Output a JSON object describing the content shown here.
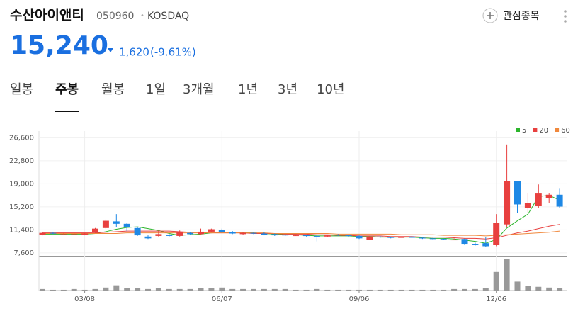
{
  "header": {
    "name": "수산아이앤티",
    "code": "050960",
    "separator": "•",
    "market": "KOSDAQ",
    "watch": "관심종목",
    "price": "15,240",
    "change": "1,620",
    "change_pct": "(-9.61%)"
  },
  "tabs": [
    "일봉",
    "주봉",
    "월봉",
    "1일",
    "3개월",
    "1년",
    "3년",
    "10년"
  ],
  "active_tab": 1,
  "chart_data": {
    "type": "candlestick",
    "categories": [
      null,
      null,
      null,
      null,
      "03/08",
      null,
      null,
      null,
      null,
      null,
      null,
      null,
      null,
      null,
      null,
      null,
      null,
      "06/07",
      null,
      null,
      null,
      null,
      null,
      null,
      null,
      null,
      null,
      null,
      null,
      null,
      "09/06",
      null,
      null,
      null,
      null,
      null,
      null,
      null,
      null,
      null,
      null,
      null,
      null,
      "12/06",
      null,
      null,
      null,
      null,
      null,
      null
    ],
    "open": [
      10600,
      10900,
      10700,
      10700,
      10600,
      11000,
      11700,
      12800,
      12400,
      11700,
      10300,
      10400,
      10600,
      10400,
      10900,
      10700,
      11100,
      11400,
      11000,
      10700,
      10900,
      10800,
      10700,
      10600,
      10500,
      10500,
      10400,
      10300,
      10600,
      10500,
      10400,
      9800,
      10300,
      10200,
      10200,
      10300,
      10100,
      10000,
      9900,
      9800,
      9900,
      9100,
      9200,
      8900,
      12300,
      19400,
      15000,
      15400,
      16700,
      17200
    ],
    "high": [
      11000,
      11000,
      10800,
      10800,
      10900,
      11700,
      13100,
      14000,
      12600,
      11800,
      10500,
      11300,
      10700,
      11300,
      11000,
      11600,
      11600,
      11600,
      11200,
      11000,
      11000,
      11000,
      10800,
      10700,
      10600,
      10600,
      10500,
      10600,
      10700,
      10600,
      10500,
      10400,
      10400,
      10300,
      10300,
      10400,
      10200,
      10100,
      10000,
      10000,
      10000,
      9300,
      10200,
      14000,
      25500,
      19400,
      17500,
      18900,
      17400,
      18300
    ],
    "low": [
      10500,
      10700,
      10600,
      10600,
      10500,
      10900,
      11600,
      11900,
      11200,
      10400,
      9900,
      10300,
      10300,
      10300,
      10600,
      10600,
      11000,
      10900,
      10700,
      10600,
      10700,
      10500,
      10400,
      10400,
      10400,
      10300,
      9500,
      10200,
      10400,
      10300,
      9900,
      9700,
      10100,
      10000,
      10100,
      10000,
      9900,
      9800,
      9700,
      9700,
      9000,
      8800,
      8600,
      8700,
      11800,
      14200,
      14300,
      15000,
      15800,
      15000
    ],
    "close": [
      10900,
      10800,
      10700,
      10700,
      10800,
      11600,
      12900,
      12400,
      11800,
      10500,
      10000,
      10700,
      10400,
      11000,
      10700,
      11100,
      11500,
      11000,
      10800,
      10900,
      10800,
      10600,
      10500,
      10500,
      10500,
      10400,
      10300,
      10500,
      10500,
      10400,
      10000,
      10300,
      10200,
      10100,
      10200,
      10100,
      10000,
      9900,
      9800,
      9800,
      9100,
      8900,
      8700,
      12500,
      19400,
      15600,
      15800,
      17400,
      17200,
      15240
    ],
    "volume": [
      2,
      1,
      1,
      2,
      1,
      2,
      4,
      7,
      3,
      3,
      2,
      3,
      2,
      2,
      2,
      3,
      3,
      4,
      2,
      2,
      2,
      2,
      2,
      2,
      1,
      1,
      2,
      1,
      1,
      1,
      1,
      1,
      1,
      1,
      1,
      1,
      1,
      1,
      1,
      2,
      2,
      2,
      3,
      25,
      42,
      12,
      6,
      5,
      4,
      3
    ],
    "volume_color": "#999999",
    "up_color": "#e8403f",
    "down_color": "#1e88e5",
    "series": [
      {
        "name": "5",
        "color": "#2cb52c",
        "values": [
          10700,
          10700,
          10700,
          10700,
          10700,
          10800,
          11100,
          11500,
          11800,
          11900,
          11600,
          11300,
          10800,
          10500,
          10600,
          10700,
          10900,
          11000,
          11000,
          11000,
          10900,
          10800,
          10700,
          10600,
          10600,
          10500,
          10400,
          10400,
          10400,
          10400,
          10300,
          10300,
          10200,
          10200,
          10200,
          10200,
          10100,
          10000,
          10000,
          9900,
          9700,
          9500,
          9200,
          9800,
          11700,
          12900,
          14000,
          16900,
          17100,
          16300
        ]
      },
      {
        "name": "20",
        "color": "#e8403f",
        "values": [
          10900,
          10900,
          10900,
          10900,
          10900,
          10900,
          11000,
          11100,
          11200,
          11200,
          11200,
          11200,
          11200,
          11100,
          11000,
          11000,
          10900,
          10900,
          10900,
          10900,
          10800,
          10800,
          10800,
          10700,
          10700,
          10700,
          10600,
          10600,
          10500,
          10500,
          10400,
          10400,
          10400,
          10300,
          10300,
          10300,
          10200,
          10200,
          10200,
          10100,
          10000,
          10000,
          9900,
          10100,
          10500,
          10900,
          11200,
          11600,
          12000,
          12300
        ]
      },
      {
        "name": "60",
        "color": "#f0883c",
        "values": [
          10800,
          10800,
          10800,
          10800,
          10800,
          10800,
          10800,
          10800,
          10900,
          10900,
          10900,
          10900,
          10900,
          10900,
          10900,
          10900,
          10900,
          10900,
          10900,
          10900,
          10900,
          10900,
          10800,
          10800,
          10800,
          10800,
          10800,
          10800,
          10700,
          10700,
          10700,
          10700,
          10700,
          10700,
          10600,
          10600,
          10600,
          10600,
          10500,
          10500,
          10500,
          10500,
          10400,
          10500,
          10600,
          10700,
          10800,
          10900,
          11000,
          11200
        ]
      }
    ],
    "ylim": [
      7000,
      27700
    ],
    "yticks": [
      {
        "value": 7600,
        "label": "7,600"
      },
      {
        "value": 11400,
        "label": "11,400"
      },
      {
        "value": 15200,
        "label": "15,200"
      },
      {
        "value": 19000,
        "label": "19,000"
      },
      {
        "value": 22800,
        "label": "22,800"
      },
      {
        "value": 26600,
        "label": "26,600"
      }
    ],
    "grid": true
  }
}
